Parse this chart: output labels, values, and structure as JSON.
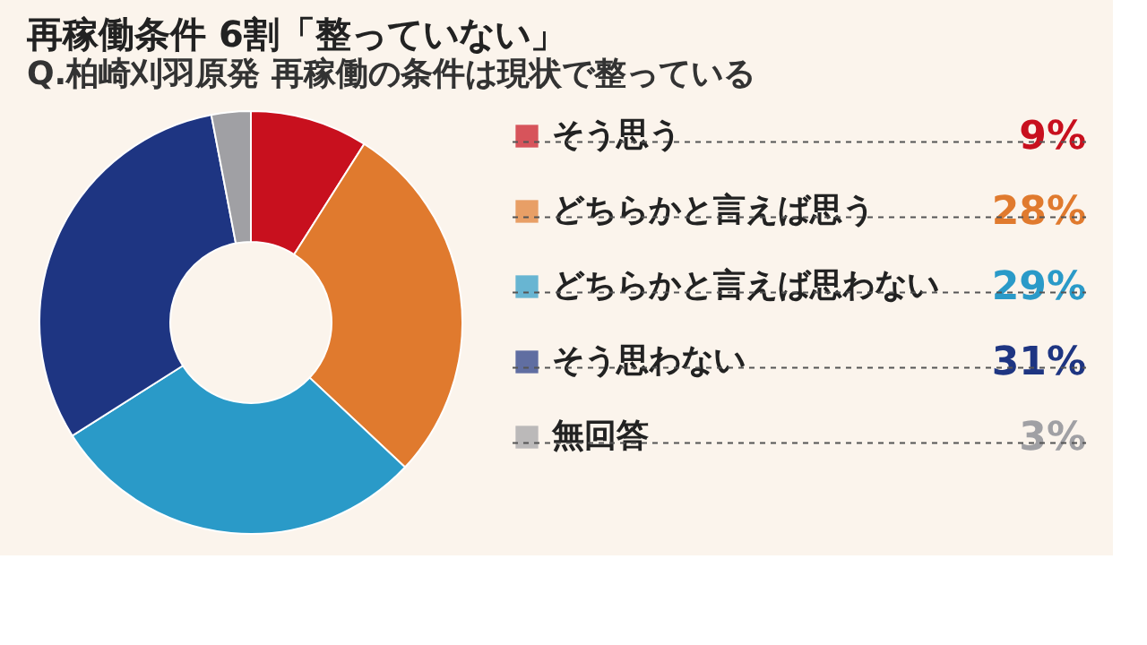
{
  "chart_data": {
    "type": "donut",
    "title": "再稼働条件 6割「整っていない」",
    "subtitle": "Q.柏崎刈羽原発 再稼働の条件は現状で整っている",
    "categories": [
      "そう思う",
      "どちらかと言えば思う",
      "どちらかと言えば思わない",
      "そう思わない",
      "無回答"
    ],
    "values": [
      9,
      28,
      29,
      31,
      3
    ],
    "colors": [
      "#c8101e",
      "#e07a2e",
      "#2a9ac8",
      "#1e3582",
      "#a0a0a4"
    ],
    "value_labels": [
      "9%",
      "28%",
      "29%",
      "31%",
      "3%"
    ],
    "legend": "right"
  }
}
